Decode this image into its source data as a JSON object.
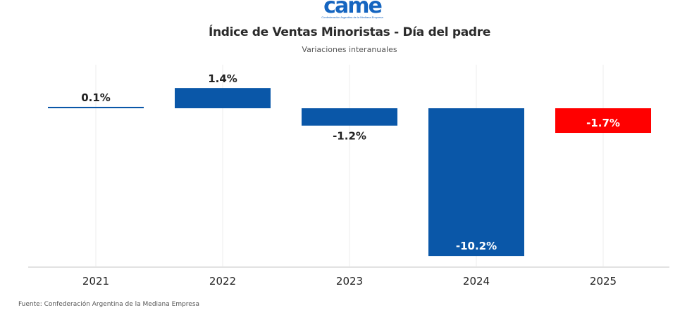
{
  "logo": {
    "mark": "came",
    "tagline": "Confederación Argentina de la Mediana Empresa"
  },
  "chart_data": {
    "type": "bar",
    "title": "Índice de Ventas Minoristas - Día del padre",
    "subtitle": "Variaciones interanuales",
    "xlabel": "",
    "ylabel": "",
    "categories": [
      "2021",
      "2022",
      "2023",
      "2024",
      "2025"
    ],
    "values": [
      0.1,
      1.4,
      -1.2,
      -10.2,
      -1.7
    ],
    "data_labels": [
      "0.1%",
      "1.4%",
      "-1.2%",
      "-10.2%",
      "-1.7%"
    ],
    "colors": [
      "#0a57a8",
      "#0a57a8",
      "#0a57a8",
      "#0a57a8",
      "#ff0000"
    ],
    "ylim": [
      -10.9,
      2.8
    ],
    "grid": "vertical",
    "legend": "none",
    "source": "Fuente: Confederación Argentina de la Mediana Empresa"
  }
}
